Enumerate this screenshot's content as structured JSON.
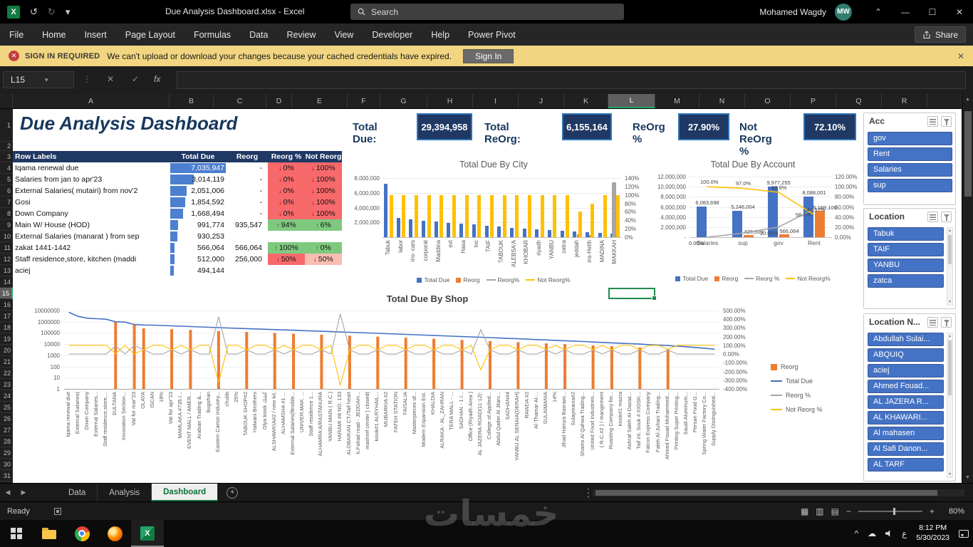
{
  "title_bar": {
    "title": "Due Analysis Dashboard.xlsx - Excel",
    "search_placeholder": "Search",
    "user_name": "Mohamed Wagdy",
    "user_initials": "MW"
  },
  "ribbon": {
    "tabs": [
      "File",
      "Home",
      "Insert",
      "Page Layout",
      "Formulas",
      "Data",
      "Review",
      "View",
      "Developer",
      "Help",
      "Power Pivot"
    ],
    "share_label": "Share"
  },
  "message_bar": {
    "badge": "SIGN IN REQUIRED",
    "message": "We can't upload or download your changes because your cached credentials have expired.",
    "action": "Sign In"
  },
  "formula_bar": {
    "name_box": "L15",
    "fx_label": "fx"
  },
  "grid": {
    "columns": [
      "A",
      "B",
      "C",
      "D",
      "E",
      "F",
      "G",
      "H",
      "I",
      "J",
      "K",
      "L",
      "M",
      "N",
      "O",
      "P",
      "Q",
      "R"
    ],
    "selected_column": "L",
    "row_first": 1,
    "row_last": 31,
    "selected_row": 15
  },
  "dashboard": {
    "title": "Due Analysis Dashboard",
    "kpis": [
      {
        "label": "Total Due:",
        "value": "29,394,958"
      },
      {
        "label": "Total ReOrg:",
        "value": "6,155,164"
      },
      {
        "label": "ReOrg %",
        "value": "27.90%"
      },
      {
        "label": "Not ReOrg %",
        "value": "72.10%"
      }
    ]
  },
  "pivot": {
    "headers": [
      "Row Labels",
      "Total Due",
      "Reorg",
      "Reorg %",
      "Not Reorg"
    ],
    "max_due": 7035947,
    "rows": [
      {
        "label": "Iqama renewal due",
        "due": "7,035,947",
        "due_value": 7035947,
        "reorg": "-",
        "reorg_pct": "0%",
        "not_reorg_pct": "100%",
        "trend": "down"
      },
      {
        "label": "Salaries from jan to apr'23",
        "due": "3,014,119",
        "due_value": 3014119,
        "reorg": "-",
        "reorg_pct": "0%",
        "not_reorg_pct": "100%",
        "trend": "down"
      },
      {
        "label": "External Salaries( mutairi) from nov'2",
        "due": "2,051,006",
        "due_value": 2051006,
        "reorg": "-",
        "reorg_pct": "0%",
        "not_reorg_pct": "100%",
        "trend": "down"
      },
      {
        "label": "Gosi",
        "due": "1,854,592",
        "due_value": 1854592,
        "reorg": "-",
        "reorg_pct": "0%",
        "not_reorg_pct": "100%",
        "trend": "down"
      },
      {
        "label": "Down Company",
        "due": "1,668,494",
        "due_value": 1668494,
        "reorg": "-",
        "reorg_pct": "0%",
        "not_reorg_pct": "100%",
        "trend": "down"
      },
      {
        "label": "Main W/ House (HOD)",
        "due": "991,774",
        "due_value": 991774,
        "reorg": "935,547",
        "reorg_pct": "94%",
        "not_reorg_pct": "6%",
        "trend": "up"
      },
      {
        "label": "External Salaries (manarat ) from sep",
        "due": "930,253",
        "due_value": 930253,
        "reorg": "",
        "reorg_pct": "",
        "not_reorg_pct": "",
        "trend": "none"
      },
      {
        "label": "zakat 1441-1442",
        "due": "566,064",
        "due_value": 566064,
        "reorg": "566,064",
        "reorg_pct": "100%",
        "not_reorg_pct": "0%",
        "trend": "up"
      },
      {
        "label": "Staff residence,store, kitchen (maddi",
        "due": "512,000",
        "due_value": 512000,
        "reorg": "256,000",
        "reorg_pct": "50%",
        "not_reorg_pct": "50%",
        "trend": "mid"
      },
      {
        "label": "aciej",
        "due": "494,144",
        "due_value": 494144,
        "reorg": "",
        "reorg_pct": "",
        "not_reorg_pct": "",
        "trend": "none"
      }
    ]
  },
  "chart_data": [
    {
      "type": "bar",
      "title": "Total Due By City",
      "categories": [
        "Tabuk",
        "labor",
        "ins- cars",
        "corporat",
        "Maddina",
        "ext",
        "Hasa",
        "loc",
        "TAIF",
        "TABOUK",
        "ALEBSA'A",
        "KHOBAR",
        "riyadh",
        "YANBU",
        "zatca",
        "jeddah",
        "ins-Helth",
        "MADINA",
        "MAKKAH"
      ],
      "left_axis_labels": [
        "8,000,000",
        "6,000,000",
        "4,000,000",
        "2,000,000"
      ],
      "right_axis_labels": [
        "140%",
        "120%",
        "100%",
        "80%",
        "60%",
        "40%",
        "20%",
        "0%"
      ],
      "left_max": 8000000,
      "right_max": 140,
      "series": [
        {
          "name": "Total Due",
          "kind": "bar",
          "axis": "left",
          "color": "#4472C4",
          "values": [
            7200000,
            2600000,
            2400000,
            2250000,
            2100000,
            1950000,
            1800000,
            1700000,
            1550000,
            1450000,
            1300000,
            1200000,
            1100000,
            1000000,
            900000,
            800000,
            700000,
            600000,
            500000
          ]
        },
        {
          "name": "Reorg",
          "kind": "bar",
          "axis": "left",
          "color": "#ED7D31",
          "values": [
            0,
            0,
            0,
            0,
            0,
            0,
            0,
            0,
            0,
            0,
            0,
            0,
            0,
            0,
            0,
            400000,
            300000,
            0,
            0
          ]
        },
        {
          "name": "Reorg%",
          "kind": "line",
          "axis": "right",
          "color": "#A5A5A5",
          "values": [
            0,
            0,
            0,
            0,
            0,
            0,
            0,
            0,
            0,
            0,
            0,
            0,
            0,
            0,
            0,
            0,
            0,
            0,
            130
          ]
        },
        {
          "name": "Not Reorg%",
          "kind": "line",
          "axis": "right",
          "color": "#FFC000",
          "values": [
            100,
            100,
            100,
            100,
            100,
            100,
            100,
            100,
            100,
            100,
            100,
            100,
            100,
            100,
            100,
            60,
            80,
            100,
            100
          ]
        }
      ]
    },
    {
      "type": "bar",
      "title": "Total Due By Account",
      "categories": [
        "Salaries",
        "sup",
        "gov",
        "Rent"
      ],
      "left_axis_labels": [
        "12,000,000",
        "10,000,000",
        "8,000,000",
        "6,000,000",
        "4,000,000",
        "2,000,000",
        "-"
      ],
      "right_axis_labels": [
        "120.00%",
        "100.00%",
        "80.00%",
        "60.00%",
        "40.00%",
        "20.00%",
        "0.00%"
      ],
      "left_max": 12000000,
      "right_max": 120,
      "series": [
        {
          "name": "Total Due",
          "kind": "bar",
          "axis": "left",
          "color": "#4472C4",
          "values": [
            6083698,
            5246004,
            9977255,
            8088001
          ],
          "labels": [
            "6,083,698",
            "5,246,004",
            "9,977,255",
            "8,088,001"
          ]
        },
        {
          "name": "Reorg",
          "kind": "bar",
          "axis": "left",
          "color": "#ED7D31",
          "values": [
            0,
            420000,
            566064,
            5169100
          ],
          "labels": [
            "",
            "420,000",
            "566,064",
            "5,169,100"
          ]
        },
        {
          "name": "Reorg %",
          "kind": "line",
          "axis": "right",
          "color": "#A5A5A5",
          "values": [
            0,
            8,
            20,
            56
          ],
          "labels": [
            "0.00%",
            "",
            "20.00%",
            "56.0%"
          ]
        },
        {
          "name": "Not Reorg%",
          "kind": "line",
          "axis": "right",
          "color": "#FFC000",
          "values": [
            100,
            97,
            88.9,
            44.57
          ],
          "labels": [
            "100.0%",
            "97.0%",
            "88.9%",
            "44.57%"
          ]
        }
      ]
    },
    {
      "type": "line",
      "title": "Total Due By Shop",
      "categories": [
        "Iqama renewal due",
        "External Salaries(",
        "Down Company",
        "External Salaries...",
        "Staff residence,store,...",
        "SULTANA",
        "Innovation Section...",
        "Vat for mar\"23",
        "OLAYA",
        "ISCAN",
        "18%",
        "Vat for apr\"23",
        "MAMLAKA #735 /...",
        "EVENT MALL / AMER...",
        "Arabian Trading &...",
        "Bugshan",
        "Eastern Carton Industry...",
        "chubb",
        "25%",
        "TABOUK SHOP#2",
        "Halwani Brothers",
        "Olya kiosk كشك",
        "ALSHAWKIA#2 / new kit.",
        "ALHAMSHA #1 ...",
        "External Salaries(flexible...",
        "UNIVER.MAK. ...",
        "Staff residence 1...",
        "ALHAMRA'A/RASTANURA",
        "YANBU MAIN ( R.C )",
        "HARAMI #8   NO. 133",
        "ALOBAIKAN CT./Taif heart",
        "k.Fahad road - JEDDAH...",
        "mashref center ) closed(",
        "kiosk#1 ALRYHAIL...",
        "MUBARKIA #2",
        "FATEH STATION",
        "FAISALIA",
        "Masterpieces of...",
        "Modern Expansion Est.",
        "KHALDIA",
        "ALRAKA - AL_ZAHRAN",
        "TERA MALL - ...",
        "SADHAN - 1  /...",
        "Office (Riyadh Area )",
        "AL JAZERA ROAD(11-12(-",
        "College of Applied...",
        "Abdul Qader Al Jilani...",
        "SADHAN#4",
        "YANBU AL SENAIA(DERAH)",
        "RAWDA #2",
        "Al-Thamar Al-...",
        "SULAIMANIA",
        "14%",
        "Jihad Hamza Basrawi...",
        "Sulaymania#2",
        "Shams Al Qahwa Trading...",
        "United Food Industries...",
        "( R.C.#2 ) / mangement",
        "Roasting Company for...",
        "kiosk#1 mazra",
        "Ashraf Saleh Al-Dazaz...",
        "Taif int. Souk # KIOSK...",
        "Falcon Express Company",
        "Faleh Al-Juhani Trading...",
        "Ahmed Fouad Mohammed...",
        "Printing Super Printing...",
        "Saudi Aluminum...",
        "Persan Food G...",
        "Spring Water Factory Co...",
        "Supply Distinguished..."
      ],
      "left_axis_labels": [
        "10000000",
        "1000000",
        "100000",
        "10000",
        "1000",
        "100",
        "10",
        "1"
      ],
      "right_axis_labels": [
        "500.00%",
        "400.00%",
        "300.00%",
        "200.00%",
        "100.00%",
        "0.00%",
        "-100.00%",
        "-200.00%",
        "-300.00%",
        "-400.00%"
      ],
      "series": [
        {
          "name": "Reorg",
          "kind": "bar",
          "axis": "log",
          "color": "#ED7D31",
          "values": [
            0,
            0,
            0,
            0,
            0,
            935547,
            0,
            566064,
            256000,
            0,
            0,
            215000,
            0,
            185000,
            0,
            0,
            149000,
            0,
            0,
            121000,
            0,
            0,
            99000,
            0,
            86000,
            0,
            0,
            70000,
            0,
            0,
            57000,
            0,
            0,
            46000,
            0,
            0,
            37000,
            0,
            0,
            30000,
            0,
            0,
            23500,
            0,
            0,
            19000,
            0,
            0,
            15000,
            0,
            0,
            11700,
            0,
            10000,
            0,
            0,
            7700,
            0,
            6500,
            0,
            0,
            5000,
            0,
            0,
            3700,
            0,
            0,
            0,
            0,
            0
          ]
        },
        {
          "name": "Total Due",
          "kind": "line",
          "axis": "log",
          "color": "#4472C4",
          "values": [
            7035947,
            3014119,
            2051006,
            1854592,
            1668494,
            991774,
            930253,
            566064,
            512000,
            494144,
            460000,
            430000,
            400000,
            370000,
            345000,
            320000,
            298000,
            278000,
            260000,
            243000,
            227000,
            212000,
            198000,
            185000,
            173000,
            161000,
            150000,
            140000,
            131000,
            122000,
            114000,
            106000,
            99000,
            92000,
            86000,
            80000,
            74000,
            69000,
            64000,
            60000,
            55000,
            51000,
            47000,
            44000,
            41000,
            38000,
            35000,
            32000,
            30000,
            27500,
            25500,
            23500,
            21500,
            20000,
            18500,
            17000,
            15500,
            14000,
            13000,
            12000,
            11000,
            10000,
            9000,
            8200,
            7400,
            6600,
            5800,
            5000,
            4200,
            3500
          ]
        },
        {
          "name": "Reorg %",
          "kind": "line",
          "axis": "right",
          "color": "#A5A5A5",
          "values": [
            0,
            0,
            0,
            0,
            0,
            94,
            0,
            100,
            50,
            0,
            0,
            50,
            0,
            50,
            0,
            0,
            430,
            0,
            0,
            50,
            0,
            0,
            50,
            0,
            50,
            0,
            0,
            50,
            0,
            460,
            50,
            0,
            0,
            50,
            0,
            0,
            50,
            0,
            0,
            50,
            0,
            0,
            50,
            0,
            280,
            50,
            0,
            0,
            50,
            0,
            0,
            46,
            0,
            50,
            0,
            0,
            47,
            0,
            50,
            0,
            0,
            50,
            0,
            0,
            46,
            0,
            0,
            0,
            0,
            0
          ]
        },
        {
          "name": "Not Reorg %",
          "kind": "line",
          "axis": "right",
          "color": "#FFC000",
          "values": [
            100,
            100,
            100,
            100,
            100,
            6,
            100,
            0,
            50,
            100,
            100,
            50,
            100,
            50,
            100,
            100,
            -330,
            100,
            100,
            50,
            100,
            100,
            50,
            100,
            50,
            100,
            100,
            50,
            100,
            -360,
            50,
            100,
            100,
            50,
            100,
            100,
            50,
            100,
            100,
            50,
            100,
            100,
            50,
            100,
            -180,
            50,
            100,
            100,
            50,
            100,
            100,
            54,
            100,
            50,
            100,
            100,
            53,
            100,
            50,
            100,
            100,
            50,
            100,
            100,
            54,
            100,
            100,
            100,
            100,
            100
          ]
        }
      ]
    }
  ],
  "slicers": [
    {
      "title": "Acc",
      "items": [
        "gov",
        "Rent",
        "Salaries",
        "sup"
      ],
      "has_scrollbar": false
    },
    {
      "title": "Location",
      "items": [
        "Tabuk",
        "TAIF",
        "YANBU",
        "zatca"
      ],
      "has_scrollbar": true
    },
    {
      "title": "Location N...",
      "items": [
        "Abdullah Sulai...",
        "ABQUIQ",
        "aciej",
        "Ahmed Fouad...",
        "AL JAZERA R...",
        "AL KHAWARI...",
        "Al mahasen",
        "Al Safi Danon...",
        "AL TARF"
      ],
      "has_scrollbar": true
    }
  ],
  "sheet_tabs": {
    "items": [
      "Data",
      "Analysis",
      "Dashboard"
    ],
    "active": "Dashboard"
  },
  "status_bar": {
    "ready_label": "Ready",
    "zoom_level": "80%"
  },
  "taskbar": {
    "time": "8:12 PM",
    "date": "5/30/2023",
    "language": "ع"
  },
  "watermark": {
    "text": "خمسات"
  },
  "colors": {
    "accent_blue": "#4472C4",
    "accent_orange": "#ED7D31",
    "accent_gray": "#A5A5A5",
    "accent_yellow": "#FFC000",
    "navy": "#1F3864",
    "selection_green": "#1E8A4C"
  }
}
